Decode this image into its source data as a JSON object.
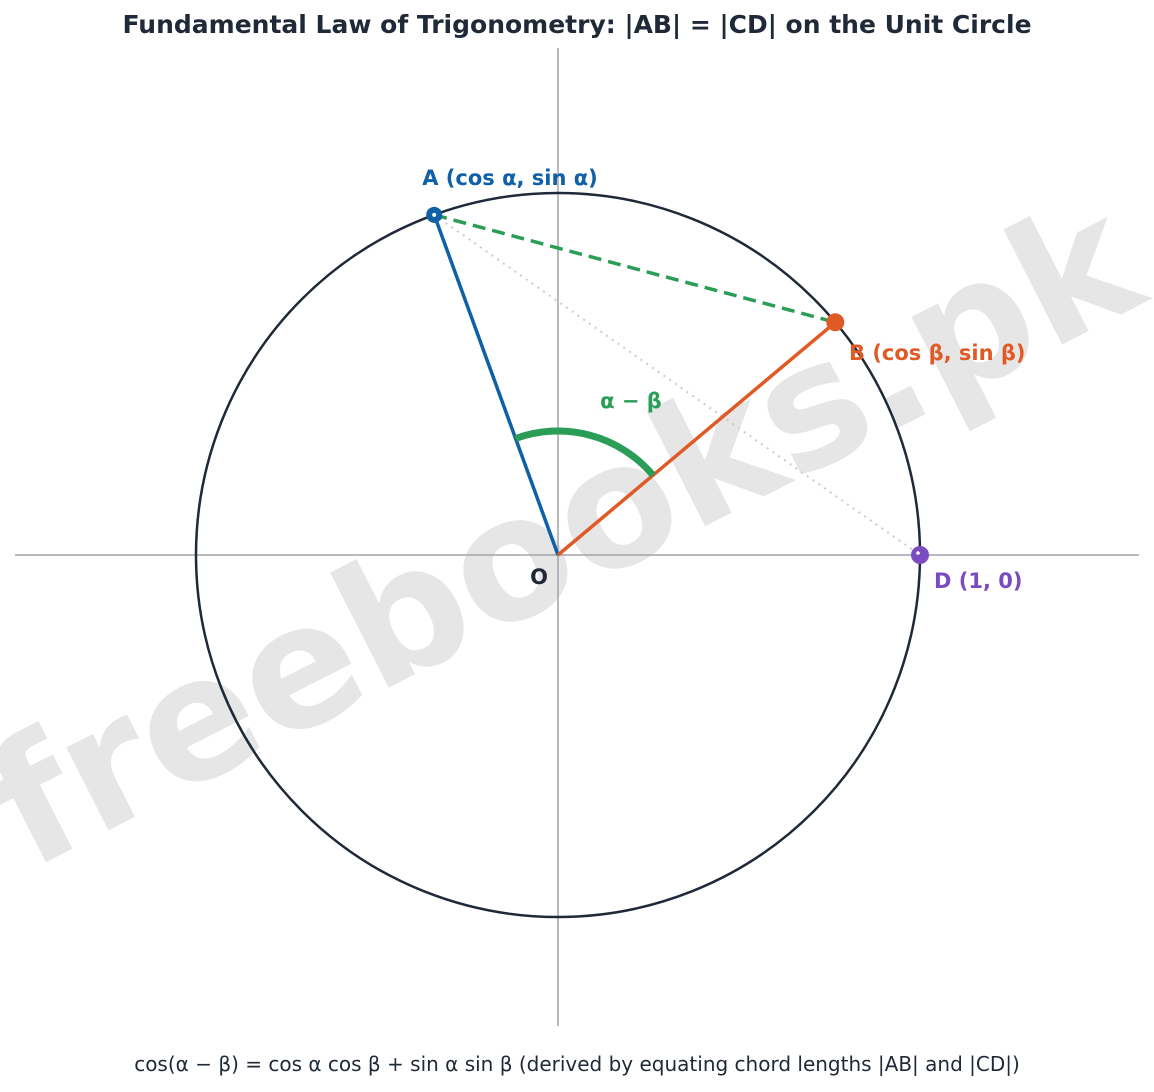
{
  "title": "Fundamental Law of Trigonometry: |AB| = |CD| on the Unit Circle",
  "caption": "cos(α − β) = cos α cos β + sin α sin β  (derived by equating chord lengths |AB| and |CD|)",
  "watermark": "freebooks.pk",
  "points": {
    "A": {
      "label": "A (cos α, sin α)",
      "angle_deg": 110,
      "color": "#1060a8"
    },
    "B": {
      "label": "B (cos β, sin β)",
      "angle_deg": 40,
      "color": "#e05a25"
    },
    "D": {
      "label": "D (1, 0)",
      "angle_deg": 0,
      "color": "#7b4cc0"
    },
    "O": {
      "label": "O",
      "color": "#1f2937"
    }
  },
  "angle_marker": {
    "label": "α − β",
    "color": "#2a9d57"
  },
  "colors": {
    "circle": "#1f2937",
    "axes": "#a0a4ab",
    "chord_AB": "#2a9d57",
    "chord_AD": "#c8ccd2",
    "watermark": "#e6e6e6"
  }
}
